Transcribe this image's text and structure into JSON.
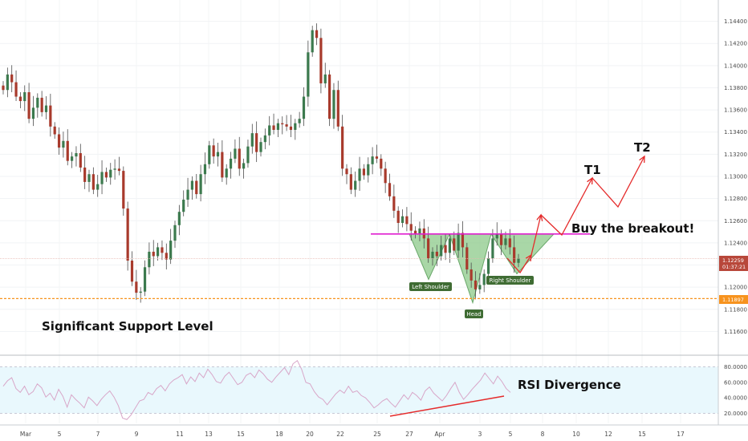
{
  "chart_data": {
    "type": "candlestick",
    "colors": {
      "up": "#3c7a4e",
      "down": "#a83a2c",
      "resistance_line": "#e01fd0",
      "support_line": "#f7931e",
      "annotation": "#e52b2b",
      "pattern_fill": "#8cc98a",
      "rsi_band": "#e9f8fd",
      "rsi_line": "#d8a6c8",
      "price_badge": "#b8473a"
    },
    "price_axis": {
      "ticks": [
        "1.14400",
        "1.14200",
        "1.14000",
        "1.13800",
        "1.13600",
        "1.13400",
        "1.13200",
        "1.13000",
        "1.12800",
        "1.12600",
        "1.12400",
        "1.12200",
        "1.12000",
        "1.11800",
        "1.11600"
      ],
      "range": [
        1.1148,
        1.1452
      ]
    },
    "time_axis": {
      "ticks": [
        "Mar",
        "5",
        "7",
        "9",
        "11",
        "13",
        "15",
        "18",
        "20",
        "22",
        "25",
        "27",
        "Apr",
        "3",
        "5",
        "8",
        "10",
        "12",
        "15",
        "17"
      ]
    },
    "current_price": {
      "value": "1.12259",
      "countdown": "01:37:21"
    },
    "support": {
      "value": "1.11897",
      "label": "Significant Support Level"
    },
    "resistance_neckline": 1.1248,
    "pattern": {
      "name": "Inverse Head and Shoulders",
      "left_shoulder": "Left Shoulder",
      "head": "Head",
      "right_shoulder": "Right Shoulder"
    },
    "annotations": {
      "breakout": "Buy the breakout!",
      "t1": "T1",
      "t2": "T2",
      "rsi": "RSI Divergence"
    },
    "candles_close": [
      1.1378,
      1.1392,
      1.1385,
      1.1372,
      1.1368,
      1.1376,
      1.1352,
      1.1362,
      1.1371,
      1.1358,
      1.1364,
      1.1345,
      1.1338,
      1.1326,
      1.1332,
      1.1314,
      1.1318,
      1.1321,
      1.1308,
      1.1295,
      1.1302,
      1.1288,
      1.1293,
      1.1304,
      1.1299,
      1.1306,
      1.1307,
      1.1305,
      1.1271,
      1.1224,
      1.1205,
      1.1195,
      1.1196,
      1.1218,
      1.1232,
      1.1228,
      1.1236,
      1.1231,
      1.1225,
      1.1242,
      1.1256,
      1.1268,
      1.1279,
      1.1288,
      1.1296,
      1.1284,
      1.1302,
      1.1311,
      1.1328,
      1.1318,
      1.1322,
      1.1299,
      1.1307,
      1.1316,
      1.1325,
      1.1307,
      1.1312,
      1.1327,
      1.1339,
      1.1322,
      1.1331,
      1.1337,
      1.1346,
      1.1342,
      1.1348,
      1.1347,
      1.1345,
      1.1342,
      1.1348,
      1.1352,
      1.1372,
      1.1412,
      1.1432,
      1.1425,
      1.1384,
      1.1392,
      1.1352,
      1.1378,
      1.1345,
      1.1307,
      1.1302,
      1.1288,
      1.1296,
      1.1307,
      1.1301,
      1.1311,
      1.1318,
      1.1316,
      1.1307,
      1.1294,
      1.1282,
      1.1269,
      1.1258,
      1.1264,
      1.1257,
      1.1251,
      1.1248,
      1.1253,
      1.1244,
      1.1226,
      1.1232,
      1.1228,
      1.1238,
      1.1231,
      1.1244,
      1.1233,
      1.1249,
      1.1236,
      1.1216,
      1.1206,
      1.1198,
      1.1202,
      1.1212,
      1.1226,
      1.1244,
      1.1248,
      1.1238,
      1.1244,
      1.1236,
      1.1222,
      1.1226
    ],
    "rsi": {
      "ticks": [
        "80.0000",
        "60.0000",
        "40.0000",
        "20.0000"
      ],
      "upper": 80,
      "lower": 20,
      "values": [
        55,
        62,
        66,
        52,
        47,
        55,
        44,
        48,
        58,
        53,
        41,
        46,
        37,
        51,
        42,
        28,
        44,
        38,
        33,
        27,
        41,
        36,
        30,
        38,
        44,
        49,
        41,
        30,
        14,
        12,
        18,
        27,
        36,
        38,
        47,
        44,
        52,
        56,
        49,
        58,
        63,
        66,
        70,
        58,
        67,
        61,
        72,
        66,
        77,
        70,
        61,
        59,
        68,
        73,
        65,
        57,
        60,
        69,
        72,
        66,
        76,
        71,
        64,
        60,
        67,
        73,
        79,
        70,
        84,
        88,
        77,
        60,
        58,
        48,
        41,
        38,
        31,
        38,
        45,
        50,
        46,
        55,
        47,
        49,
        43,
        40,
        34,
        27,
        31,
        36,
        39,
        33,
        28,
        36,
        44,
        38,
        47,
        43,
        37,
        49,
        54,
        46,
        41,
        36,
        43,
        52,
        60,
        47,
        38,
        44,
        51,
        57,
        63,
        72,
        65,
        58,
        68,
        61,
        52,
        47
      ]
    }
  }
}
